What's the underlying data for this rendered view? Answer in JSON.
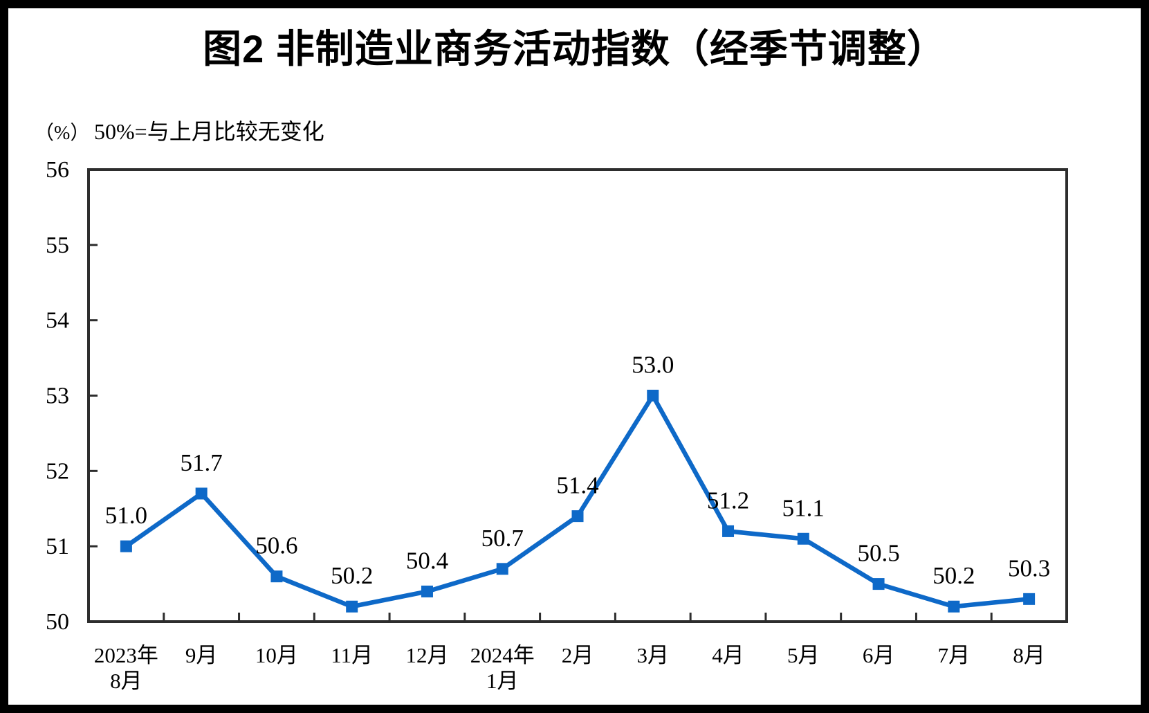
{
  "title": "图2 非制造业商务活动指数（经季节调整）",
  "axis_note": {
    "unit_label": "（%）",
    "baseline_note": "50%=与上月比较无变化"
  },
  "chart_data": {
    "type": "line",
    "title": "图2 非制造业商务活动指数（经季节调整）",
    "categories": [
      "2023年8月",
      "9月",
      "10月",
      "11月",
      "12月",
      "2024年1月",
      "2月",
      "3月",
      "4月",
      "5月",
      "6月",
      "7月",
      "8月"
    ],
    "x_labels": [
      [
        "2023年",
        "8月"
      ],
      [
        "9月"
      ],
      [
        "10月"
      ],
      [
        "11月"
      ],
      [
        "12月"
      ],
      [
        "2024年",
        "1月"
      ],
      [
        "2月"
      ],
      [
        "3月"
      ],
      [
        "4月"
      ],
      [
        "5月"
      ],
      [
        "6月"
      ],
      [
        "7月"
      ],
      [
        "8月"
      ]
    ],
    "values": [
      51.0,
      51.7,
      50.6,
      50.2,
      50.4,
      50.7,
      51.4,
      53.0,
      51.2,
      51.1,
      50.5,
      50.2,
      50.3
    ],
    "data_labels": [
      "51.0",
      "51.7",
      "50.6",
      "50.2",
      "50.4",
      "50.7",
      "51.4",
      "53.0",
      "51.2",
      "51.1",
      "50.5",
      "50.2",
      "50.3"
    ],
    "ylim": [
      50,
      56
    ],
    "yticks": [
      50,
      51,
      52,
      53,
      54,
      55,
      56
    ],
    "ytick_labels": [
      "50",
      "51",
      "52",
      "53",
      "54",
      "55",
      "56"
    ],
    "grid": false,
    "legend": "none",
    "line_color": "#0E69C8",
    "marker": "square",
    "marker_color": "#0E69C8",
    "axis_color": "#2D2D2D",
    "label_color": "#000000"
  }
}
